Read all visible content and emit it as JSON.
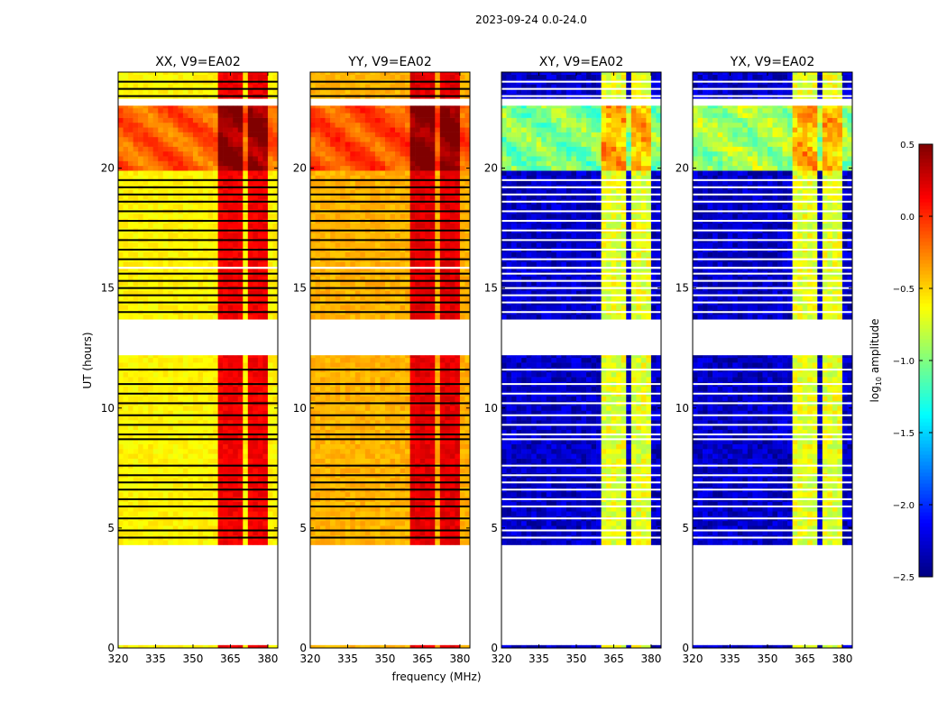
{
  "chart_data": {
    "type": "heatmap",
    "suptitle": "2023-09-24 0.0-24.0",
    "xlabel": "frequency (MHz)",
    "ylabel": "UT (hours)",
    "xlim": [
      320,
      384
    ],
    "ylim": [
      0,
      24
    ],
    "xticks": [
      320,
      335,
      350,
      365,
      380
    ],
    "yticks": [
      0,
      5,
      10,
      15,
      20
    ],
    "colorbar": {
      "label": "log10 amplitude",
      "range": [
        -2.5,
        0.5
      ],
      "ticks": [
        "0.5",
        "0.0",
        "−0.5",
        "−1.0",
        "−1.5",
        "−2.0",
        "−2.5"
      ],
      "tick_values": [
        0.5,
        0,
        -0.5,
        -1,
        -1.5,
        -2,
        -2.5
      ],
      "colormap": "jet"
    },
    "data_segments": [
      [
        0,
        0.12
      ],
      [
        4.3,
        12.2
      ],
      [
        13.7,
        15.8
      ],
      [
        15.9,
        22.6
      ],
      [
        22.9,
        24
      ]
    ],
    "rfi_bands": [
      [
        360.5,
        366
      ],
      [
        367,
        370.5
      ],
      [
        371.5,
        374
      ],
      [
        375,
        379
      ]
    ],
    "bright_period": [
      19.7,
      22.6
    ],
    "flagged_hours": [
      23.6,
      23.3,
      23.0,
      19.5,
      19.2,
      18.9,
      18.6,
      18.2,
      17.8,
      17.4,
      17.0,
      16.6,
      16.2,
      15.6,
      15.3,
      15.0,
      14.7,
      14.4,
      14.0,
      11.6,
      11.0,
      10.6,
      10.2,
      9.7,
      9.3,
      8.9,
      8.7,
      7.6,
      7.2,
      6.9,
      6.6,
      6.2,
      5.9,
      5.4,
      4.9,
      4.6
    ],
    "panels": [
      {
        "title": "XX, V9=EA02",
        "base": -0.6,
        "bright": -0.15,
        "band": 0.15,
        "flag_color": "#000000"
      },
      {
        "title": "YY, V9=EA02",
        "base": -0.4,
        "bright": -0.1,
        "band": 0.2,
        "flag_color": "#000000"
      },
      {
        "title": "XY, V9=EA02",
        "base": -2.3,
        "bright": -1.0,
        "band": -0.7,
        "flag_color": "#ffffff"
      },
      {
        "title": "YX, V9=EA02",
        "base": -2.3,
        "bright": -0.9,
        "band": -0.7,
        "flag_color": "#ffffff"
      }
    ]
  }
}
